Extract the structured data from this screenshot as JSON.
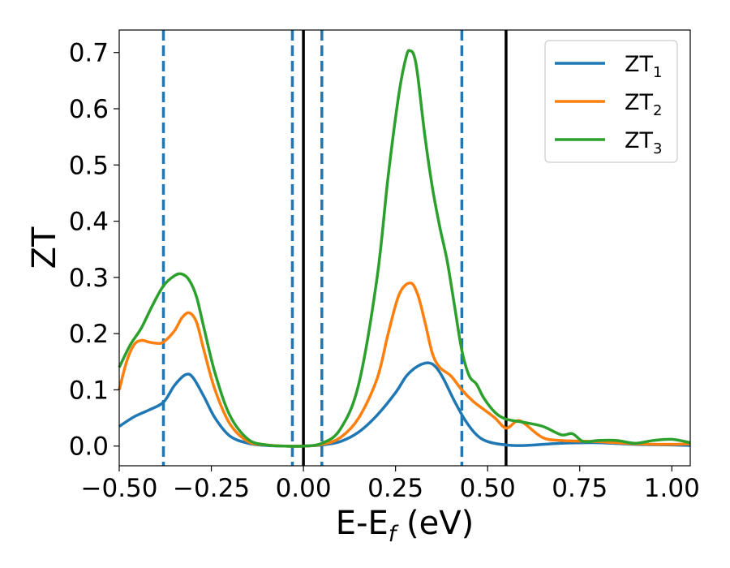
{
  "chart_data": {
    "type": "line",
    "title": "",
    "xlabel": "E-E",
    "xlabel_sub": "f",
    "xlabel_unit": " (eV)",
    "ylabel": "ZT",
    "xlim": [
      -0.5,
      1.05
    ],
    "ylim": [
      -0.035,
      0.74
    ],
    "xticks": [
      -0.5,
      -0.25,
      0.0,
      0.25,
      0.5,
      0.75,
      1.0
    ],
    "xtick_labels": [
      "−0.50",
      "−0.25",
      "0.00",
      "0.25",
      "0.50",
      "0.75",
      "1.00"
    ],
    "yticks": [
      0.0,
      0.1,
      0.2,
      0.3,
      0.4,
      0.5,
      0.6,
      0.7
    ],
    "ytick_labels": [
      "0.0",
      "0.1",
      "0.2",
      "0.3",
      "0.4",
      "0.5",
      "0.6",
      "0.7"
    ],
    "grid": false,
    "legend_position": "top-right",
    "vlines_dashed": {
      "color": "#1f77b4",
      "x": [
        -0.38,
        -0.03,
        0.05,
        0.43
      ]
    },
    "vlines_solid": {
      "color": "#000000",
      "x": [
        0.0,
        0.55
      ]
    },
    "series": [
      {
        "name": "ZT",
        "subscript": "1",
        "color": "#1f77b4",
        "x": [
          -0.5,
          -0.46,
          -0.42,
          -0.38,
          -0.35,
          -0.32,
          -0.3,
          -0.27,
          -0.24,
          -0.2,
          -0.15,
          -0.1,
          -0.05,
          0.0,
          0.05,
          0.1,
          0.15,
          0.2,
          0.25,
          0.28,
          0.31,
          0.34,
          0.36,
          0.38,
          0.41,
          0.44,
          0.47,
          0.5,
          0.55,
          0.6,
          0.7,
          0.8,
          0.9,
          1.0,
          1.05
        ],
        "y": [
          0.035,
          0.052,
          0.064,
          0.078,
          0.108,
          0.127,
          0.122,
          0.088,
          0.05,
          0.018,
          0.005,
          0.001,
          0.0,
          0.0,
          0.002,
          0.008,
          0.025,
          0.055,
          0.095,
          0.125,
          0.142,
          0.148,
          0.14,
          0.12,
          0.08,
          0.045,
          0.02,
          0.008,
          0.002,
          0.001,
          0.005,
          0.006,
          0.003,
          0.002,
          0.001
        ]
      },
      {
        "name": "ZT",
        "subscript": "2",
        "color": "#ff7f0e",
        "x": [
          -0.5,
          -0.48,
          -0.46,
          -0.44,
          -0.42,
          -0.4,
          -0.38,
          -0.35,
          -0.33,
          -0.31,
          -0.29,
          -0.27,
          -0.24,
          -0.2,
          -0.15,
          -0.1,
          -0.05,
          0.0,
          0.05,
          0.1,
          0.15,
          0.2,
          0.23,
          0.26,
          0.29,
          0.31,
          0.33,
          0.35,
          0.37,
          0.4,
          0.43,
          0.46,
          0.49,
          0.52,
          0.55,
          0.58,
          0.6,
          0.65,
          0.7,
          0.8,
          0.9,
          1.0,
          1.05
        ],
        "y": [
          0.1,
          0.15,
          0.18,
          0.188,
          0.185,
          0.183,
          0.185,
          0.205,
          0.228,
          0.237,
          0.22,
          0.17,
          0.1,
          0.04,
          0.008,
          0.002,
          0.0,
          0.0,
          0.003,
          0.015,
          0.05,
          0.12,
          0.2,
          0.27,
          0.29,
          0.27,
          0.22,
          0.165,
          0.14,
          0.125,
          0.1,
          0.08,
          0.065,
          0.05,
          0.032,
          0.045,
          0.04,
          0.015,
          0.01,
          0.008,
          0.004,
          0.003,
          0.004
        ]
      },
      {
        "name": "ZT",
        "subscript": "3",
        "color": "#2ca02c",
        "x": [
          -0.5,
          -0.47,
          -0.44,
          -0.41,
          -0.38,
          -0.35,
          -0.33,
          -0.31,
          -0.29,
          -0.27,
          -0.24,
          -0.2,
          -0.15,
          -0.1,
          -0.05,
          0.0,
          0.05,
          0.1,
          0.15,
          0.2,
          0.23,
          0.26,
          0.28,
          0.29,
          0.3,
          0.31,
          0.33,
          0.35,
          0.37,
          0.39,
          0.41,
          0.43,
          0.45,
          0.47,
          0.49,
          0.52,
          0.55,
          0.6,
          0.65,
          0.7,
          0.73,
          0.76,
          0.8,
          0.85,
          0.9,
          0.95,
          1.0,
          1.05
        ],
        "y": [
          0.14,
          0.18,
          0.21,
          0.25,
          0.285,
          0.303,
          0.306,
          0.295,
          0.265,
          0.21,
          0.13,
          0.055,
          0.012,
          0.002,
          0.0,
          0.0,
          0.005,
          0.03,
          0.11,
          0.3,
          0.48,
          0.63,
          0.695,
          0.703,
          0.695,
          0.66,
          0.55,
          0.46,
          0.39,
          0.33,
          0.25,
          0.17,
          0.125,
          0.11,
          0.085,
          0.06,
          0.048,
          0.042,
          0.035,
          0.02,
          0.022,
          0.008,
          0.01,
          0.01,
          0.005,
          0.01,
          0.012,
          0.006
        ]
      }
    ]
  }
}
